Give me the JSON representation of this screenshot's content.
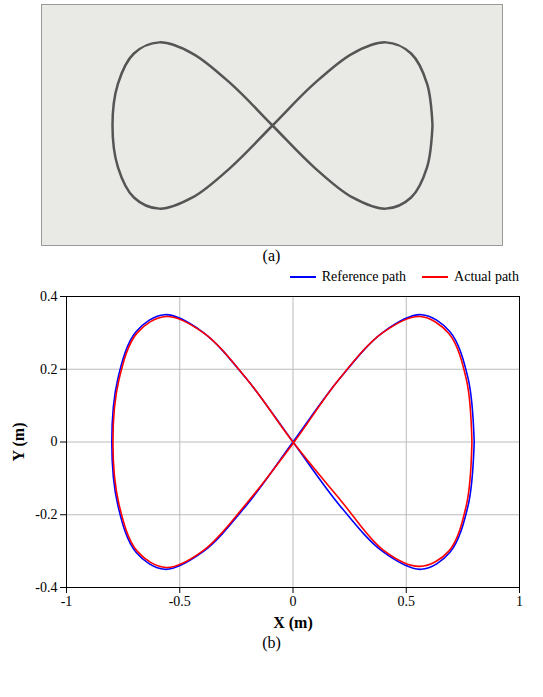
{
  "photo_caption": "(a)",
  "chart_caption": "(b)",
  "chart_data": {
    "type": "line",
    "xlabel": "X (m)",
    "ylabel": "Y (m)",
    "xlim": [
      -1,
      1
    ],
    "xticks": [
      -1,
      -0.5,
      0,
      0.5,
      1
    ],
    "ylim": [
      -0.4,
      0.4
    ],
    "yticks": [
      -0.4,
      -0.2,
      0,
      0.2,
      0.4
    ],
    "grid": true,
    "legend": "top",
    "series": [
      {
        "name": "Reference path",
        "color": "#0000ff",
        "line_style": "solid",
        "x": [
          0.8,
          0.773,
          0.693,
          0.566,
          0.4,
          0.207,
          0,
          -0.207,
          -0.4,
          -0.566,
          -0.693,
          -0.773,
          -0.8,
          -0.773,
          -0.693,
          -0.566,
          -0.4,
          -0.207,
          0,
          0.207,
          0.4,
          0.566,
          0.693,
          0.773,
          0.8
        ],
        "values": [
          0,
          0.175,
          0.303,
          0.35,
          0.303,
          0.175,
          0,
          -0.175,
          -0.303,
          -0.35,
          -0.303,
          -0.175,
          0,
          0.175,
          0.303,
          0.35,
          0.303,
          0.175,
          0,
          -0.175,
          -0.303,
          -0.35,
          -0.303,
          -0.175,
          0
        ]
      },
      {
        "name": "Actual path",
        "color": "#ff0000",
        "line_style": "solid",
        "x": [
          0.79,
          0.766,
          0.688,
          0.56,
          0.395,
          0.2,
          0.005,
          -0.2,
          -0.395,
          -0.56,
          -0.688,
          -0.768,
          -0.795,
          -0.768,
          -0.688,
          -0.56,
          -0.395,
          -0.2,
          0,
          0.21,
          0.4,
          0.56,
          0.688,
          0.766,
          0.79
        ],
        "values": [
          0,
          0.17,
          0.298,
          0.345,
          0.3,
          0.17,
          0,
          -0.165,
          -0.298,
          -0.345,
          -0.3,
          -0.172,
          0,
          0.172,
          0.3,
          0.345,
          0.3,
          0.17,
          0,
          -0.16,
          -0.298,
          -0.342,
          -0.3,
          -0.172,
          0
        ]
      }
    ]
  }
}
